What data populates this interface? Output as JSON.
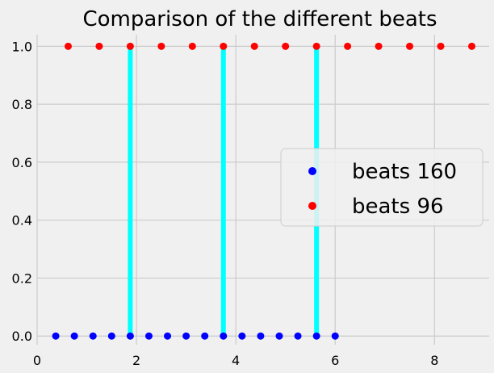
{
  "chart_data": {
    "type": "scatter",
    "title": "Comparison of the different beats",
    "xlabel": "",
    "ylabel": "",
    "xlim": [
      0,
      9.1
    ],
    "ylim": [
      -0.03,
      1.04
    ],
    "x_ticks": [
      0,
      2,
      4,
      6,
      8
    ],
    "y_ticks": [
      0.0,
      0.2,
      0.4,
      0.6,
      0.8,
      1.0
    ],
    "x_tick_labels": [
      "0",
      "2",
      "4",
      "6",
      "8"
    ],
    "y_tick_labels": [
      "0.0",
      "0.2",
      "0.4",
      "0.6",
      "0.8",
      "1.0"
    ],
    "grid": true,
    "legend_position": "center-right",
    "series": [
      {
        "name": "beats 160",
        "color": "#0000ff",
        "x": [
          0.375,
          0.75,
          1.125,
          1.5,
          1.875,
          2.25,
          2.625,
          3.0,
          3.375,
          3.75,
          4.125,
          4.5,
          4.875,
          5.25,
          5.625,
          6.0
        ],
        "y": [
          0,
          0,
          0,
          0,
          0,
          0,
          0,
          0,
          0,
          0,
          0,
          0,
          0,
          0,
          0,
          0
        ]
      },
      {
        "name": "beats 96",
        "color": "#ff0000",
        "x": [
          0.625,
          1.25,
          1.875,
          2.5,
          3.125,
          3.75,
          4.375,
          5.0,
          5.625,
          6.25,
          6.875,
          7.5,
          8.125,
          8.75
        ],
        "y": [
          1,
          1,
          1,
          1,
          1,
          1,
          1,
          1,
          1,
          1,
          1,
          1,
          1,
          1
        ]
      }
    ],
    "vertical_lines": {
      "color": "#00ffff",
      "x": [
        1.875,
        3.75,
        5.625
      ],
      "y_range": [
        0,
        1
      ]
    }
  }
}
